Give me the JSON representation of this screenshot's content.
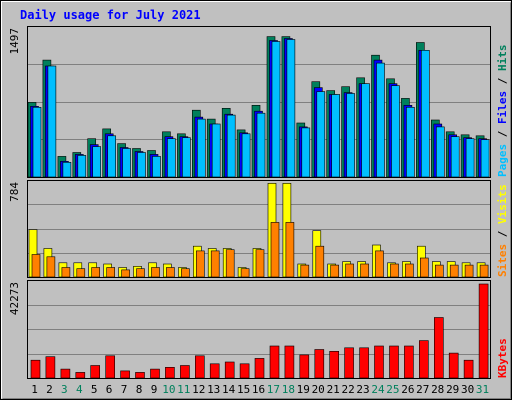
{
  "title": "Daily usage for July 2021",
  "colors": {
    "frame_bg": "#C0C0C0",
    "plot_bg": "#C0C0C0",
    "hits": "#00805C",
    "files": "#0000FF",
    "pages": "#00BFFF",
    "visits": "#FFFF00",
    "sites": "#FF8000",
    "kbytes": "#FF0000",
    "weekend_label": "#00805C",
    "weekday_label": "#000000",
    "title": "#0000FF"
  },
  "chart_data": [
    {
      "type": "bar",
      "name": "hits-files-pages",
      "ymax_label": "1497",
      "ylim": [
        0,
        1497
      ],
      "legend": [
        "Pages",
        "Files",
        "Hits"
      ],
      "categories": [
        "1",
        "2",
        "3",
        "4",
        "5",
        "6",
        "7",
        "8",
        "9",
        "10",
        "11",
        "12",
        "13",
        "14",
        "15",
        "16",
        "17",
        "18",
        "19",
        "20",
        "21",
        "22",
        "23",
        "24",
        "25",
        "26",
        "27",
        "28",
        "29",
        "30",
        "31"
      ],
      "series": [
        {
          "name": "Hits",
          "values": [
            760,
            1190,
            210,
            250,
            390,
            490,
            340,
            290,
            270,
            460,
            440,
            680,
            590,
            700,
            480,
            730,
            1430,
            1430,
            550,
            970,
            880,
            920,
            1010,
            1240,
            1000,
            800,
            1370,
            580,
            460,
            430,
            420
          ]
        },
        {
          "name": "Files",
          "values": [
            720,
            1130,
            160,
            230,
            330,
            440,
            300,
            260,
            230,
            410,
            410,
            610,
            540,
            640,
            450,
            670,
            1390,
            1410,
            510,
            910,
            840,
            860,
            950,
            1190,
            950,
            730,
            1290,
            540,
            430,
            400,
            390
          ]
        },
        {
          "name": "Pages",
          "values": [
            710,
            1130,
            150,
            220,
            310,
            420,
            290,
            250,
            210,
            390,
            400,
            590,
            540,
            630,
            440,
            650,
            1380,
            1400,
            500,
            870,
            840,
            850,
            950,
            1160,
            930,
            710,
            1290,
            510,
            410,
            390,
            380
          ]
        }
      ]
    },
    {
      "type": "bar",
      "name": "visits-sites",
      "ymax_label": "784",
      "ylim": [
        0,
        784
      ],
      "legend": [
        "Sites",
        "Visits"
      ],
      "categories": [
        "1",
        "2",
        "3",
        "4",
        "5",
        "6",
        "7",
        "8",
        "9",
        "10",
        "11",
        "12",
        "13",
        "14",
        "15",
        "16",
        "17",
        "18",
        "19",
        "20",
        "21",
        "22",
        "23",
        "24",
        "25",
        "26",
        "27",
        "28",
        "29",
        "30",
        "31"
      ],
      "series": [
        {
          "name": "Visits",
          "values": [
            400,
            240,
            120,
            120,
            120,
            110,
            80,
            90,
            120,
            110,
            80,
            260,
            240,
            240,
            80,
            240,
            790,
            790,
            110,
            390,
            110,
            130,
            130,
            270,
            120,
            130,
            260,
            130,
            130,
            120,
            120
          ]
        },
        {
          "name": "Sites",
          "values": [
            190,
            170,
            80,
            70,
            80,
            80,
            60,
            70,
            80,
            80,
            70,
            220,
            220,
            230,
            70,
            230,
            460,
            460,
            100,
            260,
            100,
            110,
            110,
            220,
            110,
            110,
            160,
            100,
            100,
            100,
            100
          ]
        }
      ]
    },
    {
      "type": "bar",
      "name": "kbytes",
      "ymax_label": "42273",
      "ylim": [
        0,
        42273
      ],
      "legend": [
        "KBytes"
      ],
      "categories": [
        "1",
        "2",
        "3",
        "4",
        "5",
        "6",
        "7",
        "8",
        "9",
        "10",
        "11",
        "12",
        "13",
        "14",
        "15",
        "16",
        "17",
        "18",
        "19",
        "20",
        "21",
        "22",
        "23",
        "24",
        "25",
        "26",
        "27",
        "28",
        "29",
        "30",
        "31"
      ],
      "series": [
        {
          "name": "KBytes",
          "values": [
            8000,
            9600,
            4000,
            2500,
            5600,
            10000,
            3200,
            2500,
            4000,
            4800,
            5600,
            10000,
            6400,
            7200,
            6400,
            8800,
            14400,
            14400,
            10400,
            12800,
            12000,
            13600,
            13600,
            14400,
            14400,
            14400,
            16800,
            27200,
            11200,
            8000,
            42273
          ]
        }
      ]
    }
  ],
  "weekend_days": [
    "3",
    "4",
    "10",
    "11",
    "17",
    "18",
    "24",
    "25",
    "31"
  ]
}
